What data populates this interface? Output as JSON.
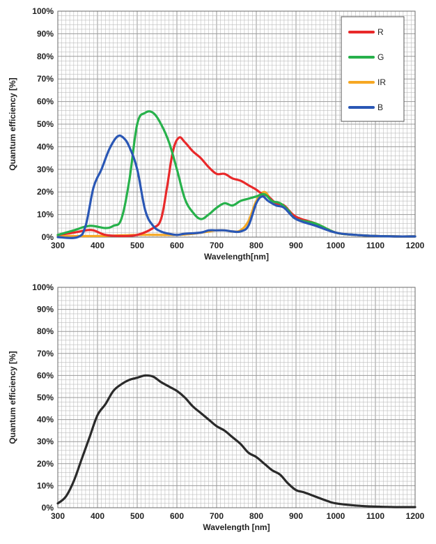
{
  "colors": {
    "R": "#e8292a",
    "G": "#27b14b",
    "IR": "#f6a823",
    "B": "#2a57b5",
    "mono": "#2a2a2a",
    "grid": "#bdbdbd"
  },
  "chart_data": [
    {
      "type": "line",
      "title": "",
      "xlabel": "Wavelength[nm]",
      "ylabel": "Quantum efficiency [%]",
      "xlim": [
        300,
        1200
      ],
      "ylim": [
        0,
        100
      ],
      "x_ticks": [
        300,
        400,
        500,
        600,
        700,
        800,
        900,
        1000,
        1100,
        1200
      ],
      "y_ticks": [
        0,
        10,
        20,
        30,
        40,
        50,
        60,
        70,
        80,
        90,
        100
      ],
      "y_unit": "%",
      "grid": true,
      "legend": {
        "placement": "top-right",
        "entries": [
          "R",
          "G",
          "IR",
          "B"
        ]
      },
      "series": [
        {
          "name": "R",
          "color_key": "R",
          "x": [
            300,
            340,
            370,
            390,
            420,
            460,
            500,
            540,
            560,
            575,
            590,
            605,
            620,
            640,
            660,
            680,
            700,
            720,
            740,
            760,
            780,
            800,
            815,
            830,
            850,
            870,
            900,
            950,
            1000,
            1050,
            1100,
            1150,
            1200
          ],
          "y": [
            1,
            2,
            3,
            3,
            1,
            0.5,
            1,
            4,
            8,
            22,
            38,
            44,
            42,
            38,
            35,
            31,
            28,
            28,
            26,
            25,
            23,
            21,
            19,
            18,
            15,
            14,
            9,
            6,
            2,
            1,
            0.5,
            0.3,
            0.3
          ]
        },
        {
          "name": "G",
          "color_key": "G",
          "x": [
            300,
            340,
            380,
            420,
            440,
            460,
            480,
            500,
            520,
            540,
            560,
            580,
            600,
            620,
            640,
            660,
            680,
            700,
            720,
            740,
            760,
            780,
            800,
            820,
            840,
            860,
            880,
            900,
            950,
            1000,
            1050,
            1100,
            1150,
            1200
          ],
          "y": [
            1,
            3,
            5,
            4,
            5,
            8,
            25,
            50,
            55,
            55,
            50,
            42,
            30,
            17,
            11,
            8,
            10,
            13,
            15,
            14,
            16,
            17,
            18,
            19,
            16,
            15,
            12,
            8,
            6,
            2,
            1,
            0.5,
            0.3,
            0.3
          ]
        },
        {
          "name": "IR",
          "color_key": "IR",
          "x": [
            300,
            400,
            500,
            560,
            600,
            640,
            680,
            700,
            720,
            740,
            760,
            780,
            800,
            820,
            840,
            860,
            880,
            900,
            950,
            1000,
            1050,
            1100,
            1150,
            1200
          ],
          "y": [
            0.5,
            0.5,
            1,
            1,
            1,
            1.5,
            2.5,
            3,
            3,
            2.5,
            3,
            7,
            16,
            20,
            16,
            15,
            12,
            8,
            6,
            2,
            1,
            0.5,
            0.3,
            0.3
          ]
        },
        {
          "name": "B",
          "color_key": "B",
          "x": [
            300,
            350,
            370,
            390,
            410,
            430,
            450,
            465,
            480,
            500,
            520,
            540,
            560,
            580,
            600,
            620,
            660,
            680,
            700,
            720,
            740,
            760,
            780,
            800,
            815,
            830,
            850,
            870,
            900,
            950,
            1000,
            1050,
            1100,
            1150,
            1200
          ],
          "y": [
            0,
            0,
            5,
            22,
            30,
            39,
            44.5,
            44,
            40,
            30,
            12,
            5,
            2.5,
            1.5,
            1,
            1.5,
            2,
            3,
            3,
            3,
            2.5,
            2.5,
            5,
            15,
            18,
            16,
            14,
            13,
            8,
            5,
            2,
            1,
            0.5,
            0.3,
            0.3
          ]
        }
      ]
    },
    {
      "type": "line",
      "title": "",
      "xlabel": "Wavelength [nm]",
      "ylabel": "Quantum efficiency [%]",
      "xlim": [
        300,
        1200
      ],
      "ylim": [
        0,
        100
      ],
      "x_ticks": [
        300,
        400,
        500,
        600,
        700,
        800,
        900,
        1000,
        1100,
        1200
      ],
      "y_ticks": [
        0,
        10,
        20,
        30,
        40,
        50,
        60,
        70,
        80,
        90,
        100
      ],
      "y_unit": "%",
      "grid": true,
      "series": [
        {
          "color_key": "mono",
          "x": [
            300,
            320,
            340,
            360,
            380,
            400,
            420,
            440,
            460,
            480,
            500,
            520,
            540,
            560,
            580,
            600,
            620,
            640,
            660,
            680,
            700,
            720,
            740,
            760,
            780,
            800,
            820,
            840,
            860,
            880,
            900,
            920,
            950,
            980,
            1000,
            1050,
            1100,
            1150,
            1200
          ],
          "y": [
            2,
            5,
            12,
            22,
            32,
            42,
            47,
            53,
            56,
            58,
            59,
            60,
            59.5,
            57,
            55,
            53,
            50,
            46,
            43,
            40,
            37,
            35,
            32,
            29,
            25,
            23,
            20,
            17,
            15,
            11,
            8,
            7,
            5,
            3,
            2,
            1,
            0.5,
            0.3,
            0.3
          ]
        }
      ]
    }
  ]
}
